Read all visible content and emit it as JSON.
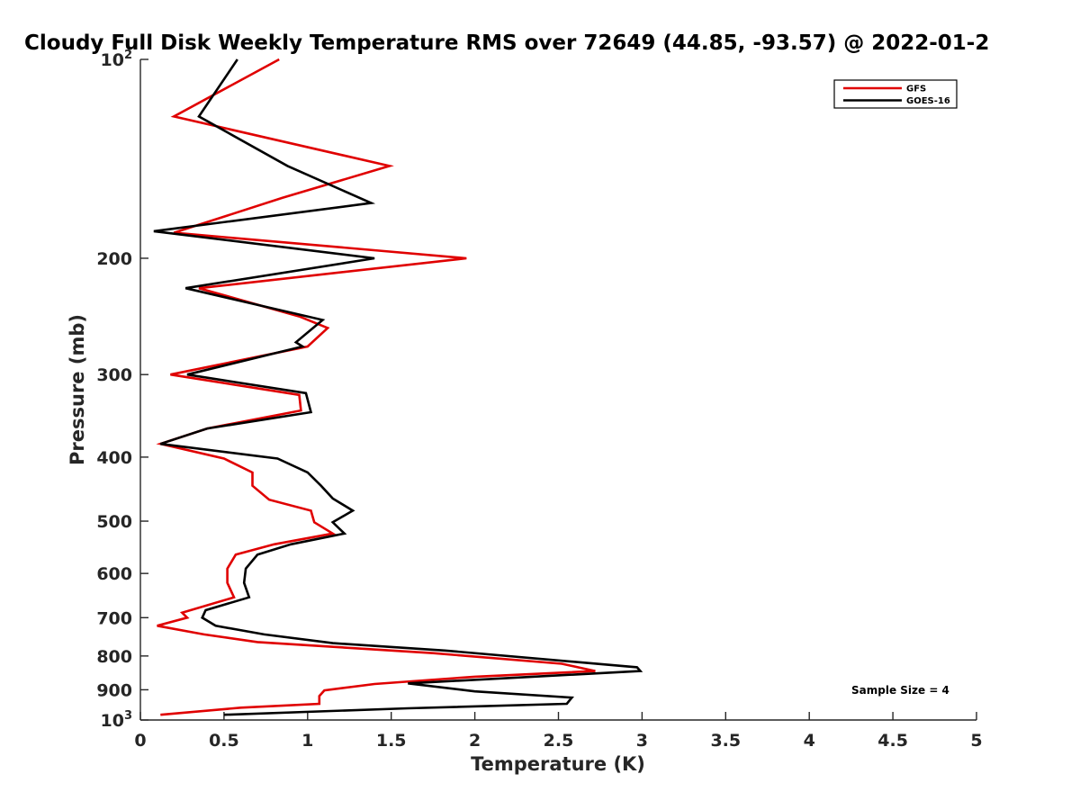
{
  "chart_data": {
    "type": "line",
    "title": "Cloudy Full Disk Weekly Temperature RMS over 72649 (44.85, -93.57) @ 2022-01-2",
    "xlabel": "Temperature (K)",
    "ylabel": "Pressure (mb)",
    "xlim": [
      0,
      5
    ],
    "ylim": [
      100,
      1000
    ],
    "y_scale": "log",
    "y_reversed": true,
    "grid": false,
    "legend_position": "top-right",
    "x_ticks": [
      {
        "value": 0,
        "label": "0"
      },
      {
        "value": 0.5,
        "label": "0.5"
      },
      {
        "value": 1,
        "label": "1"
      },
      {
        "value": 1.5,
        "label": "1.5"
      },
      {
        "value": 2,
        "label": "2"
      },
      {
        "value": 2.5,
        "label": "2.5"
      },
      {
        "value": 3,
        "label": "3"
      },
      {
        "value": 3.5,
        "label": "3.5"
      },
      {
        "value": 4,
        "label": "4"
      },
      {
        "value": 4.5,
        "label": "4.5"
      },
      {
        "value": 5,
        "label": "5"
      }
    ],
    "y_ticks": [
      {
        "value": 100,
        "base": "10",
        "exp": "2"
      },
      {
        "value": 200,
        "label": "200"
      },
      {
        "value": 300,
        "label": "300"
      },
      {
        "value": 400,
        "label": "400"
      },
      {
        "value": 500,
        "label": "500"
      },
      {
        "value": 600,
        "label": "600"
      },
      {
        "value": 700,
        "label": "700"
      },
      {
        "value": 800,
        "label": "800"
      },
      {
        "value": 900,
        "label": "900"
      },
      {
        "value": 1000,
        "base": "10",
        "exp": "3"
      }
    ],
    "series": [
      {
        "name": "GFS",
        "color": "#e00000",
        "points": [
          [
            0.83,
            100
          ],
          [
            0.2,
            122
          ],
          [
            1.49,
            145
          ],
          [
            0.85,
            162
          ],
          [
            0.2,
            183
          ],
          [
            1.95,
            200
          ],
          [
            0.35,
            222
          ],
          [
            0.95,
            245
          ],
          [
            1.12,
            255
          ],
          [
            1.0,
            272
          ],
          [
            0.18,
            300
          ],
          [
            0.95,
            322
          ],
          [
            0.96,
            340
          ],
          [
            0.4,
            362
          ],
          [
            0.12,
            382
          ],
          [
            0.5,
            402
          ],
          [
            0.67,
            422
          ],
          [
            0.67,
            442
          ],
          [
            0.77,
            464
          ],
          [
            1.02,
            482
          ],
          [
            1.04,
            502
          ],
          [
            1.15,
            522
          ],
          [
            0.8,
            542
          ],
          [
            0.57,
            562
          ],
          [
            0.52,
            590
          ],
          [
            0.52,
            620
          ],
          [
            0.56,
            652
          ],
          [
            0.25,
            688
          ],
          [
            0.28,
            700
          ],
          [
            0.1,
            720
          ],
          [
            0.38,
            742
          ],
          [
            0.7,
            762
          ],
          [
            1.75,
            792
          ],
          [
            2.52,
            822
          ],
          [
            2.72,
            843
          ],
          [
            2.0,
            860
          ],
          [
            1.4,
            882
          ],
          [
            1.1,
            902
          ],
          [
            1.07,
            920
          ],
          [
            1.07,
            945
          ],
          [
            0.6,
            958
          ],
          [
            0.12,
            982
          ]
        ]
      },
      {
        "name": "GOES-16",
        "color": "#000000",
        "points": [
          [
            0.58,
            100
          ],
          [
            0.35,
            122
          ],
          [
            0.88,
            145
          ],
          [
            1.38,
            165
          ],
          [
            0.08,
            182
          ],
          [
            1.4,
            200
          ],
          [
            0.27,
            222
          ],
          [
            1.09,
            248
          ],
          [
            0.93,
            268
          ],
          [
            0.97,
            272
          ],
          [
            0.28,
            300
          ],
          [
            0.99,
            320
          ],
          [
            1.02,
            342
          ],
          [
            0.4,
            362
          ],
          [
            0.12,
            382
          ],
          [
            0.82,
            402
          ],
          [
            1.0,
            422
          ],
          [
            1.08,
            442
          ],
          [
            1.15,
            462
          ],
          [
            1.27,
            482
          ],
          [
            1.15,
            502
          ],
          [
            1.22,
            522
          ],
          [
            0.9,
            542
          ],
          [
            0.7,
            562
          ],
          [
            0.63,
            590
          ],
          [
            0.62,
            620
          ],
          [
            0.65,
            652
          ],
          [
            0.39,
            682
          ],
          [
            0.37,
            700
          ],
          [
            0.45,
            720
          ],
          [
            0.74,
            742
          ],
          [
            1.15,
            765
          ],
          [
            1.82,
            785
          ],
          [
            2.97,
            832
          ],
          [
            2.99,
            843
          ],
          [
            1.6,
            880
          ],
          [
            2.0,
            905
          ],
          [
            2.58,
            925
          ],
          [
            2.55,
            945
          ],
          [
            1.6,
            960
          ],
          [
            0.5,
            982
          ]
        ]
      }
    ],
    "annotations": [
      "Sample Size = 4"
    ]
  }
}
